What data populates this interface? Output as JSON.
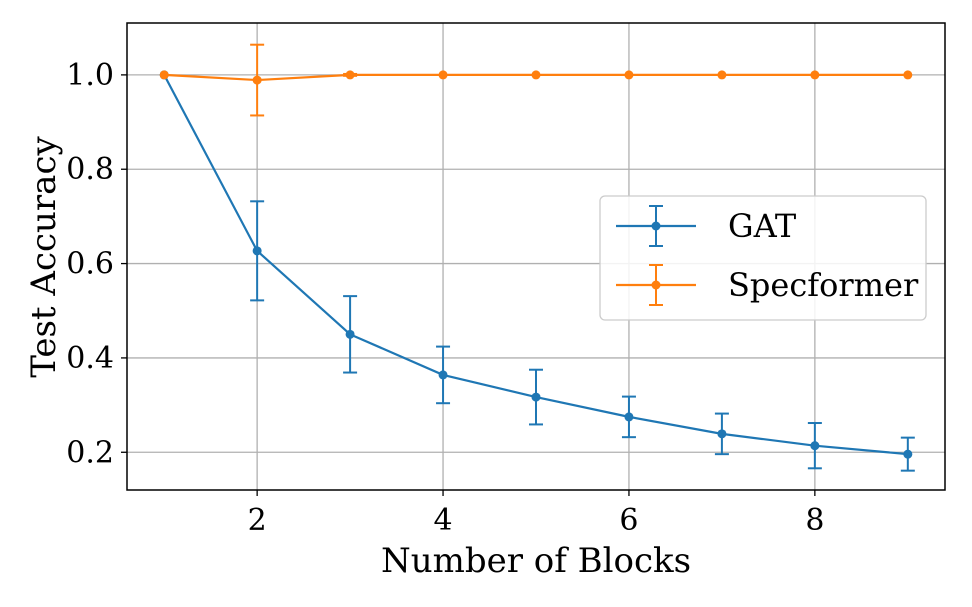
{
  "chart_data": {
    "type": "line",
    "title": "",
    "xlabel": "Number of Blocks",
    "ylabel": "Test Accuracy",
    "xlim": [
      0.6,
      9.4
    ],
    "ylim": [
      0.12,
      1.11
    ],
    "xticks": [
      2,
      4,
      6,
      8
    ],
    "xtick_labels": [
      "2",
      "4",
      "6",
      "8"
    ],
    "yticks": [
      0.2,
      0.4,
      0.6,
      0.8,
      1.0
    ],
    "ytick_labels": [
      "0.2",
      "0.4",
      "0.6",
      "0.8",
      "1.0"
    ],
    "grid": true,
    "legend_position": "center-right",
    "x": [
      1,
      2,
      3,
      4,
      5,
      6,
      7,
      8,
      9
    ],
    "series": [
      {
        "name": "GAT",
        "color": "#1f77b4",
        "values": [
          1.0,
          0.627,
          0.45,
          0.364,
          0.317,
          0.275,
          0.239,
          0.214,
          0.196
        ],
        "errors": [
          0.0,
          0.105,
          0.081,
          0.06,
          0.058,
          0.043,
          0.043,
          0.048,
          0.035
        ]
      },
      {
        "name": "Specformer",
        "color": "#ff7f0e",
        "values": [
          1.0,
          0.989,
          1.0,
          1.0,
          1.0,
          1.0,
          1.0,
          1.0,
          1.0
        ],
        "errors": [
          0.0,
          0.075,
          0.002,
          0.0,
          0.0,
          0.0,
          0.0,
          0.0,
          0.0
        ]
      }
    ]
  }
}
